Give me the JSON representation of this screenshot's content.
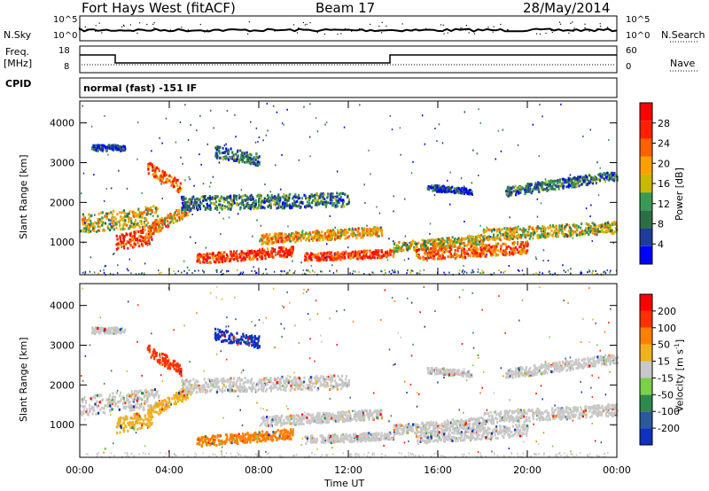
{
  "header": {
    "station": "Fort Hays West (fitACF)",
    "beam": "Beam 17",
    "date": "28/May/2014"
  },
  "top_panels": {
    "nsky_label": "N.Sky",
    "nsearch_label": "N.Search",
    "nsky_ticks": [
      "10^5",
      "10^0"
    ],
    "nsearch_ticks": [
      "10^5",
      "10^0"
    ],
    "freq_label_1": "Freq.",
    "freq_label_2": "[MHz]",
    "freq_ticks": [
      "18",
      "8"
    ],
    "nave_label": "Nave",
    "nave_ticks": [
      "60",
      "0"
    ],
    "cpid_label": "CPID",
    "cpid_text": "normal (fast) -151 IF"
  },
  "chart_data": [
    {
      "type": "heatmap",
      "name": "power",
      "ylabel": "Slant Range [km]",
      "xlabel": "Time UT",
      "x_range": [
        "00:00",
        "24:00"
      ],
      "ylim": [
        180,
        4550
      ],
      "y_ticks": [
        1000,
        2000,
        3000,
        4000
      ],
      "x_ticks": [
        "00:00",
        "04:00",
        "08:00",
        "12:00",
        "16:00",
        "20:00",
        "00:00"
      ],
      "colorbar_label": "Power [dB]",
      "colorbar_ticks": [
        "28",
        "24",
        "20",
        "16",
        "12",
        "8",
        "4"
      ],
      "colors": [
        "#0000ff",
        "#1e3c9a",
        "#2c6e46",
        "#3a9a55",
        "#c8b800",
        "#ffa000",
        "#ff6000",
        "#ff2000",
        "#ff0000"
      ]
    },
    {
      "type": "heatmap",
      "name": "velocity",
      "ylabel": "Slant Range [km]",
      "xlabel": "Time UT",
      "x_range": [
        "00:00",
        "24:00"
      ],
      "ylim": [
        180,
        4550
      ],
      "y_ticks": [
        1000,
        2000,
        3000,
        4000
      ],
      "x_ticks": [
        "00:00",
        "04:00",
        "08:00",
        "12:00",
        "16:00",
        "20:00",
        "00:00"
      ],
      "colorbar_label": "Velocity [m s-1]",
      "colorbar_ticks": [
        "200",
        "100",
        "50",
        "15",
        "-15",
        "-50",
        "-100",
        "-200"
      ],
      "colors": [
        "#1030c0",
        "#2a5a9a",
        "#2e8a4a",
        "#7ad04a",
        "#c8c8c8",
        "#f0b020",
        "#ff8000",
        "#ff3000",
        "#ff0000"
      ]
    }
  ],
  "axes": {
    "xlabel": "Time UT",
    "ylabel": "Slant Range [km]",
    "power_cb_label": "Power [dB]",
    "vel_cb_label": "Velocity [m s",
    "vel_cb_sup": "-1",
    "vel_cb_end": "]"
  }
}
